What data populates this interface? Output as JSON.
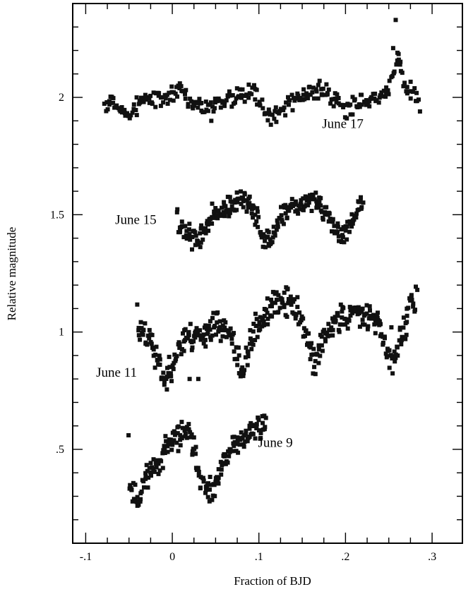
{
  "chart_data": {
    "type": "scatter",
    "title": "",
    "xlabel": "Fraction of BJD",
    "ylabel": "Relative magnitude",
    "xlim": [
      -0.115,
      0.335
    ],
    "ylim": [
      2.4,
      0.1
    ],
    "y_inverted": true,
    "grid": false,
    "legend": "none",
    "x_ticks": [
      {
        "value": -0.1,
        "label": "-.1"
      },
      {
        "value": 0,
        "label": "0"
      },
      {
        "value": 0.1,
        "label": ".1"
      },
      {
        "value": 0.2,
        "label": ".2"
      },
      {
        "value": 0.3,
        "label": ".3"
      }
    ],
    "y_ticks": [
      {
        "value": 0.5,
        "label": ".5"
      },
      {
        "value": 1,
        "label": "1"
      },
      {
        "value": 1.5,
        "label": "1.5"
      },
      {
        "value": 2,
        "label": "2"
      }
    ],
    "annotations": [
      {
        "text": "June 9",
        "x": 0.099,
        "y": 0.51
      },
      {
        "text": "June 11",
        "x": -0.088,
        "y": 0.81
      },
      {
        "text": "June 15",
        "x": -0.066,
        "y": 1.46
      },
      {
        "text": "June 17",
        "x": 0.173,
        "y": 1.87
      }
    ],
    "series": [
      {
        "name": "June 9",
        "shape": [
          [
            -0.05,
            0.35
          ],
          [
            -0.044,
            0.3
          ],
          [
            -0.038,
            0.28
          ],
          [
            -0.03,
            0.4
          ],
          [
            -0.022,
            0.42
          ],
          [
            -0.016,
            0.44
          ],
          [
            -0.01,
            0.49
          ],
          [
            -0.002,
            0.53
          ],
          [
            0.006,
            0.55
          ],
          [
            0.014,
            0.58
          ],
          [
            0.02,
            0.56
          ],
          [
            0.026,
            0.49
          ],
          [
            0.032,
            0.38
          ],
          [
            0.038,
            0.33
          ],
          [
            0.044,
            0.31
          ],
          [
            0.048,
            0.32
          ],
          [
            0.054,
            0.38
          ],
          [
            0.06,
            0.45
          ],
          [
            0.068,
            0.5
          ],
          [
            0.076,
            0.53
          ],
          [
            0.084,
            0.55
          ],
          [
            0.092,
            0.58
          ],
          [
            0.1,
            0.6
          ],
          [
            0.108,
            0.6
          ]
        ],
        "count": 210,
        "scatter": 0.025,
        "seed": 11
      },
      {
        "name": "June 11",
        "shape": [
          [
            -0.04,
            1.0
          ],
          [
            -0.032,
            1.0
          ],
          [
            -0.026,
            0.97
          ],
          [
            -0.02,
            0.9
          ],
          [
            -0.014,
            0.84
          ],
          [
            -0.008,
            0.8
          ],
          [
            -0.002,
            0.84
          ],
          [
            0.006,
            0.93
          ],
          [
            0.016,
            0.97
          ],
          [
            0.026,
            0.98
          ],
          [
            0.036,
            1.0
          ],
          [
            0.046,
            1.02
          ],
          [
            0.056,
            1.03
          ],
          [
            0.064,
            1.0
          ],
          [
            0.07,
            0.95
          ],
          [
            0.076,
            0.87
          ],
          [
            0.082,
            0.83
          ],
          [
            0.088,
            0.92
          ],
          [
            0.096,
            1.02
          ],
          [
            0.104,
            1.06
          ],
          [
            0.112,
            1.09
          ],
          [
            0.12,
            1.12
          ],
          [
            0.128,
            1.13
          ],
          [
            0.136,
            1.12
          ],
          [
            0.144,
            1.1
          ],
          [
            0.152,
            1.03
          ],
          [
            0.158,
            0.93
          ],
          [
            0.164,
            0.87
          ],
          [
            0.17,
            0.92
          ],
          [
            0.178,
            0.99
          ],
          [
            0.188,
            1.04
          ],
          [
            0.198,
            1.07
          ],
          [
            0.21,
            1.08
          ],
          [
            0.222,
            1.09
          ],
          [
            0.232,
            1.08
          ],
          [
            0.24,
            1.02
          ],
          [
            0.246,
            0.93
          ],
          [
            0.252,
            0.88
          ],
          [
            0.258,
            0.9
          ],
          [
            0.264,
            0.97
          ],
          [
            0.27,
            1.05
          ],
          [
            0.276,
            1.14
          ],
          [
            0.282,
            1.12
          ]
        ],
        "count": 420,
        "scatter": 0.03,
        "seed": 23
      },
      {
        "name": "June 15",
        "shape": [
          [
            0.006,
            1.43
          ],
          [
            0.014,
            1.44
          ],
          [
            0.022,
            1.4
          ],
          [
            0.028,
            1.38
          ],
          [
            0.036,
            1.43
          ],
          [
            0.044,
            1.48
          ],
          [
            0.054,
            1.51
          ],
          [
            0.064,
            1.53
          ],
          [
            0.074,
            1.55
          ],
          [
            0.084,
            1.56
          ],
          [
            0.092,
            1.53
          ],
          [
            0.1,
            1.46
          ],
          [
            0.106,
            1.4
          ],
          [
            0.112,
            1.38
          ],
          [
            0.118,
            1.42
          ],
          [
            0.126,
            1.48
          ],
          [
            0.136,
            1.52
          ],
          [
            0.146,
            1.54
          ],
          [
            0.156,
            1.55
          ],
          [
            0.164,
            1.57
          ],
          [
            0.172,
            1.53
          ],
          [
            0.18,
            1.48
          ],
          [
            0.188,
            1.43
          ],
          [
            0.196,
            1.41
          ],
          [
            0.204,
            1.46
          ],
          [
            0.212,
            1.52
          ],
          [
            0.22,
            1.54
          ]
        ],
        "count": 280,
        "scatter": 0.022,
        "seed": 37
      },
      {
        "name": "June 17",
        "shape": [
          [
            -0.078,
            1.97
          ],
          [
            -0.07,
            2.0
          ],
          [
            -0.062,
            1.96
          ],
          [
            -0.054,
            1.92
          ],
          [
            -0.046,
            1.95
          ],
          [
            -0.036,
            1.98
          ],
          [
            -0.024,
            1.99
          ],
          [
            -0.012,
            1.99
          ],
          [
            -0.002,
            2.02
          ],
          [
            0.008,
            2.04
          ],
          [
            0.018,
            2.0
          ],
          [
            0.028,
            1.96
          ],
          [
            0.038,
            1.95
          ],
          [
            0.05,
            1.97
          ],
          [
            0.062,
            1.99
          ],
          [
            0.074,
            2.01
          ],
          [
            0.084,
            2.03
          ],
          [
            0.094,
            2.02
          ],
          [
            0.102,
            1.98
          ],
          [
            0.11,
            1.93
          ],
          [
            0.116,
            1.91
          ],
          [
            0.124,
            1.95
          ],
          [
            0.134,
            1.98
          ],
          [
            0.146,
            2.0
          ],
          [
            0.158,
            2.01
          ],
          [
            0.17,
            2.03
          ],
          [
            0.18,
            2.02
          ],
          [
            0.19,
            1.97
          ],
          [
            0.2,
            1.95
          ],
          [
            0.21,
            1.97
          ],
          [
            0.22,
            1.99
          ],
          [
            0.23,
            2.0
          ],
          [
            0.24,
            2.01
          ],
          [
            0.248,
            2.02
          ],
          [
            0.256,
            2.12
          ],
          [
            0.262,
            2.17
          ],
          [
            0.268,
            2.03
          ],
          [
            0.276,
            2.02
          ],
          [
            0.284,
            2.0
          ]
        ],
        "count": 300,
        "scatter": 0.02,
        "seed": 53
      }
    ],
    "outliers": [
      [
        0.258,
        2.33
      ],
      [
        0.255,
        2.21
      ],
      [
        0.26,
        2.19
      ],
      [
        0.263,
        2.14
      ],
      [
        0.286,
        1.94
      ],
      [
        0.03,
        0.8
      ],
      [
        0.02,
        0.8
      ],
      [
        0.045,
        1.9
      ],
      [
        0.253,
        1.02
      ],
      [
        0.238,
        1.05
      ]
    ],
    "marker_color": "#111111"
  }
}
